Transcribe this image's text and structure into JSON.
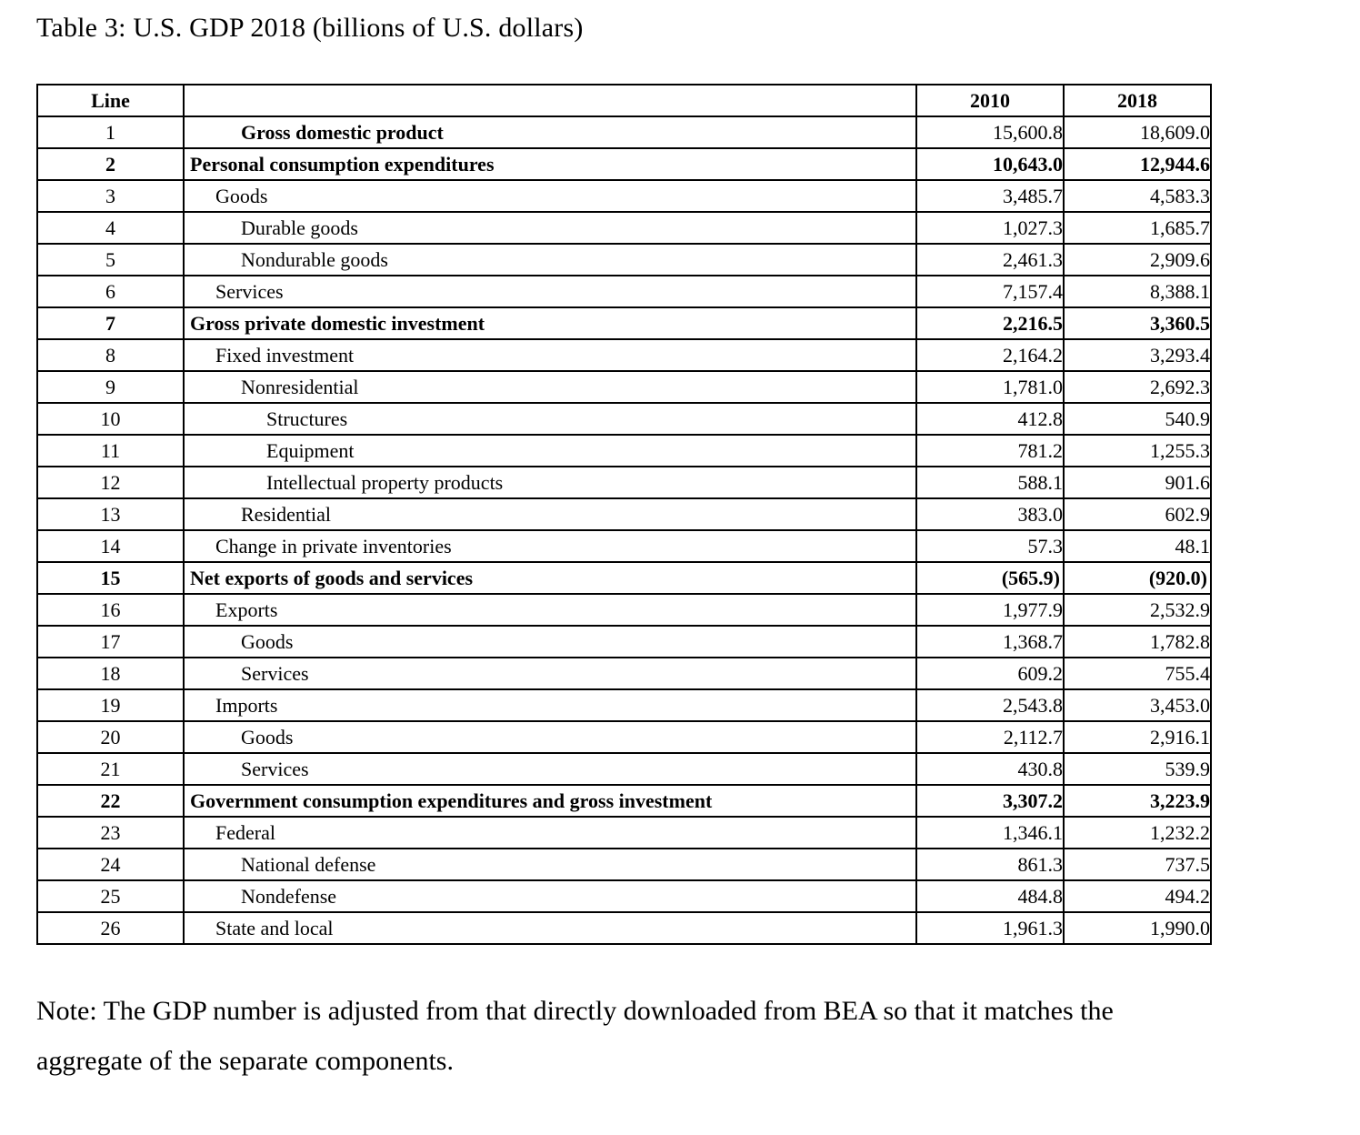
{
  "title": "Table 3: U.S. GDP 2018 (billions of U.S. dollars)",
  "colors": {
    "text": "#000000",
    "border": "#000000",
    "background": "#ffffff"
  },
  "table": {
    "headers": {
      "line": "Line",
      "desc": "",
      "y2010": "2010",
      "y2018": "2018"
    },
    "rows": [
      {
        "line": "1",
        "label": "Gross domestic product",
        "indent": 2,
        "style": "label-bold",
        "paren": false,
        "v2010": "15,600.8",
        "v2018": "18,609.0"
      },
      {
        "line": "2",
        "label": "Personal consumption expenditures",
        "indent": 0,
        "style": "bold",
        "paren": false,
        "v2010": "10,643.0",
        "v2018": "12,944.6"
      },
      {
        "line": "3",
        "label": "Goods",
        "indent": 1,
        "style": "normal",
        "paren": false,
        "v2010": "3,485.7",
        "v2018": "4,583.3"
      },
      {
        "line": "4",
        "label": "Durable goods",
        "indent": 2,
        "style": "normal",
        "paren": false,
        "v2010": "1,027.3",
        "v2018": "1,685.7"
      },
      {
        "line": "5",
        "label": "Nondurable goods",
        "indent": 2,
        "style": "normal",
        "paren": false,
        "v2010": "2,461.3",
        "v2018": "2,909.6"
      },
      {
        "line": "6",
        "label": "Services",
        "indent": 1,
        "style": "normal",
        "paren": false,
        "v2010": "7,157.4",
        "v2018": "8,388.1"
      },
      {
        "line": "7",
        "label": "Gross private domestic investment",
        "indent": 0,
        "style": "bold",
        "paren": false,
        "v2010": "2,216.5",
        "v2018": "3,360.5"
      },
      {
        "line": "8",
        "label": "Fixed investment",
        "indent": 1,
        "style": "normal",
        "paren": false,
        "v2010": "2,164.2",
        "v2018": "3,293.4"
      },
      {
        "line": "9",
        "label": "Nonresidential",
        "indent": 2,
        "style": "normal",
        "paren": false,
        "v2010": "1,781.0",
        "v2018": "2,692.3"
      },
      {
        "line": "10",
        "label": "Structures",
        "indent": 3,
        "style": "normal",
        "paren": false,
        "v2010": "412.8",
        "v2018": "540.9"
      },
      {
        "line": "11",
        "label": "Equipment",
        "indent": 3,
        "style": "normal",
        "paren": false,
        "v2010": "781.2",
        "v2018": "1,255.3"
      },
      {
        "line": "12",
        "label": "Intellectual property products",
        "indent": 3,
        "style": "normal",
        "paren": false,
        "v2010": "588.1",
        "v2018": "901.6"
      },
      {
        "line": "13",
        "label": "Residential",
        "indent": 2,
        "style": "normal",
        "paren": false,
        "v2010": "383.0",
        "v2018": "602.9"
      },
      {
        "line": "14",
        "label": "Change in private inventories",
        "indent": 1,
        "style": "normal",
        "paren": false,
        "v2010": "57.3",
        "v2018": "48.1"
      },
      {
        "line": "15",
        "label": "Net exports of goods and services",
        "indent": 0,
        "style": "bold",
        "paren": true,
        "v2010": "(565.9)",
        "v2018": "(920.0)"
      },
      {
        "line": "16",
        "label": "Exports",
        "indent": 1,
        "style": "normal",
        "paren": false,
        "v2010": "1,977.9",
        "v2018": "2,532.9"
      },
      {
        "line": "17",
        "label": "Goods",
        "indent": 2,
        "style": "normal",
        "paren": false,
        "v2010": "1,368.7",
        "v2018": "1,782.8"
      },
      {
        "line": "18",
        "label": "Services",
        "indent": 2,
        "style": "normal",
        "paren": false,
        "v2010": "609.2",
        "v2018": "755.4"
      },
      {
        "line": "19",
        "label": "Imports",
        "indent": 1,
        "style": "normal",
        "paren": false,
        "v2010": "2,543.8",
        "v2018": "3,453.0"
      },
      {
        "line": "20",
        "label": "Goods",
        "indent": 2,
        "style": "normal",
        "paren": false,
        "v2010": "2,112.7",
        "v2018": "2,916.1"
      },
      {
        "line": "21",
        "label": "Services",
        "indent": 2,
        "style": "normal",
        "paren": false,
        "v2010": "430.8",
        "v2018": "539.9"
      },
      {
        "line": "22",
        "label": "Government consumption expenditures and gross investment",
        "indent": 0,
        "style": "bold",
        "paren": false,
        "v2010": "3,307.2",
        "v2018": "3,223.9"
      },
      {
        "line": "23",
        "label": "Federal",
        "indent": 1,
        "style": "normal",
        "paren": false,
        "v2010": "1,346.1",
        "v2018": "1,232.2"
      },
      {
        "line": "24",
        "label": "National defense",
        "indent": 2,
        "style": "normal",
        "paren": false,
        "v2010": "861.3",
        "v2018": "737.5"
      },
      {
        "line": "25",
        "label": "Nondefense",
        "indent": 2,
        "style": "normal",
        "paren": false,
        "v2010": "484.8",
        "v2018": "494.2"
      },
      {
        "line": "26",
        "label": "State and local",
        "indent": 1,
        "style": "normal",
        "paren": false,
        "v2010": "1,961.3",
        "v2018": "1,990.0"
      }
    ]
  },
  "note": {
    "lines": [
      "Note: The GDP number is adjusted from that directly downloaded from BEA so that it matches the",
      "aggregate of the separate components."
    ]
  }
}
